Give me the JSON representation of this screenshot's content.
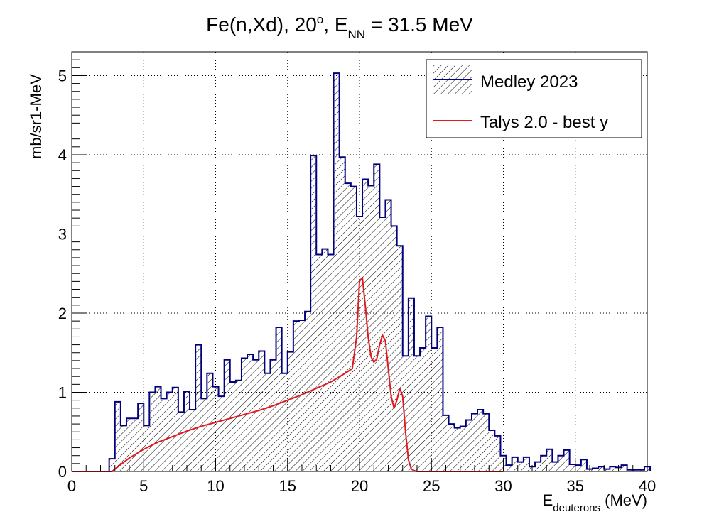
{
  "chart_data": {
    "type": "bar",
    "title": {
      "main": "Fe(n,Xd), 20",
      "sup": "o",
      "mid": ", E",
      "sub": "NN",
      "end": " = 31.5 MeV"
    },
    "xlabel": {
      "main": "E",
      "sub": "deuterons",
      "end": " (MeV)"
    },
    "ylabel": "mb/sr1-MeV",
    "xlim": [
      0,
      40
    ],
    "ylim": [
      0,
      5.3
    ],
    "x_ticks": [
      0,
      5,
      10,
      15,
      20,
      25,
      30,
      35,
      40
    ],
    "y_ticks": [
      0,
      1,
      2,
      3,
      4,
      5
    ],
    "grid": true,
    "legend_position": "top-right",
    "colors": {
      "medley": "#00007f",
      "talys": "#e3171e",
      "hatch": "#000000"
    },
    "series": [
      {
        "name": "Medley 2023",
        "style": "hatched-histogram",
        "bin_width": 0.4,
        "x_start": 2.6,
        "values": [
          0.16,
          0.88,
          0.58,
          0.67,
          0.67,
          0.86,
          0.58,
          1.0,
          1.07,
          0.92,
          1.0,
          1.06,
          0.75,
          1.01,
          0.78,
          1.6,
          0.92,
          1.24,
          1.07,
          0.95,
          1.41,
          1.13,
          1.15,
          1.43,
          1.48,
          1.41,
          1.52,
          1.24,
          1.41,
          1.82,
          1.24,
          1.51,
          1.9,
          1.91,
          2.02,
          3.99,
          2.74,
          2.81,
          2.74,
          5.03,
          3.97,
          3.64,
          3.6,
          3.22,
          3.69,
          3.61,
          3.88,
          3.21,
          3.43,
          3.1,
          2.85,
          1.46,
          2.19,
          1.46,
          1.56,
          1.96,
          1.56,
          1.82,
          0.71,
          0.6,
          0.55,
          0.57,
          0.65,
          0.73,
          0.78,
          0.73,
          0.52,
          0.45,
          0.2,
          0.08,
          0.18,
          0.12,
          0.18,
          0.06,
          0.12,
          0.2,
          0.28,
          0.12,
          0.2,
          0.27,
          0.09,
          0.08,
          0.15,
          0.03,
          0.04,
          0.06,
          0.03,
          0.06,
          0.05,
          0.08,
          0.02,
          0.02,
          0.02,
          0.06
        ]
      },
      {
        "name": "Talys 2.0 - best y",
        "style": "line",
        "x": [
          0,
          2.8,
          3.0,
          3.5,
          4.0,
          5.0,
          6.0,
          7.0,
          8.0,
          9.0,
          10.0,
          11.0,
          12.0,
          13.0,
          14.0,
          15.0,
          16.0,
          17.0,
          18.0,
          19.0,
          19.5,
          19.8,
          20.0,
          20.2,
          20.4,
          20.6,
          20.8,
          21.0,
          21.2,
          21.4,
          21.6,
          21.8,
          22.0,
          22.2,
          22.4,
          22.6,
          22.8,
          23.0,
          23.2,
          23.4,
          23.6,
          23.8,
          24.0,
          24.5,
          30.0
        ],
        "values": [
          0,
          0,
          0.03,
          0.1,
          0.17,
          0.28,
          0.37,
          0.44,
          0.51,
          0.57,
          0.62,
          0.67,
          0.72,
          0.77,
          0.83,
          0.9,
          0.97,
          1.05,
          1.13,
          1.24,
          1.3,
          1.7,
          2.4,
          2.45,
          2.1,
          1.7,
          1.45,
          1.38,
          1.42,
          1.6,
          1.72,
          1.65,
          1.3,
          0.95,
          0.8,
          0.9,
          1.05,
          0.95,
          0.5,
          0.15,
          0.03,
          0.01,
          0,
          0,
          0
        ]
      }
    ]
  }
}
